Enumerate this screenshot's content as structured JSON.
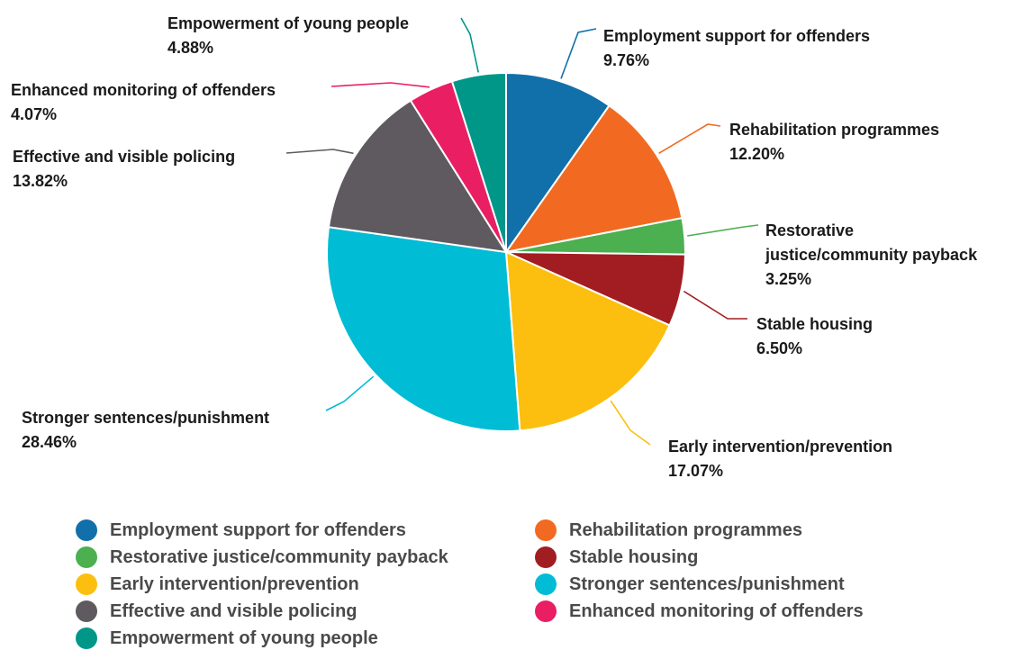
{
  "chart_data": {
    "type": "pie",
    "title": "",
    "unit": "%",
    "slices": [
      {
        "label": "Employment support for offenders",
        "value": 9.76,
        "display": "9.76%",
        "color": "#1170aa"
      },
      {
        "label": "Rehabilitation programmes",
        "value": 12.2,
        "display": "12.20%",
        "color": "#f26a21"
      },
      {
        "label": "Restorative justice/community payback",
        "value": 3.25,
        "display": "3.25%",
        "color": "#4caf50"
      },
      {
        "label": "Stable housing",
        "value": 6.5,
        "display": "6.50%",
        "color": "#a21d21"
      },
      {
        "label": "Early intervention/prevention",
        "value": 17.07,
        "display": "17.07%",
        "color": "#fcbf0f"
      },
      {
        "label": "Stronger sentences/punishment",
        "value": 28.46,
        "display": "28.46%",
        "color": "#00bcd4"
      },
      {
        "label": "Effective and visible policing",
        "value": 13.82,
        "display": "13.82%",
        "color": "#5f5a60"
      },
      {
        "label": "Enhanced monitoring of offenders",
        "value": 4.07,
        "display": "4.07%",
        "color": "#e91e63"
      },
      {
        "label": "Empowerment of young people",
        "value": 4.88,
        "display": "4.88%",
        "color": "#009688"
      }
    ],
    "legend": {
      "position": "bottom",
      "items": [
        {
          "label": "Employment support for offenders",
          "color": "#1170aa"
        },
        {
          "label": "Rehabilitation programmes",
          "color": "#f26a21"
        },
        {
          "label": "Restorative justice/community payback",
          "color": "#4caf50"
        },
        {
          "label": "Stable housing",
          "color": "#a21d21"
        },
        {
          "label": "Early intervention/prevention",
          "color": "#fcbf0f"
        },
        {
          "label": "Stronger sentences/punishment",
          "color": "#00bcd4"
        },
        {
          "label": "Effective and visible policing",
          "color": "#5f5a60"
        },
        {
          "label": "Enhanced monitoring of offenders",
          "color": "#e91e63"
        },
        {
          "label": "Empowerment of young people",
          "color": "#009688"
        }
      ]
    }
  }
}
